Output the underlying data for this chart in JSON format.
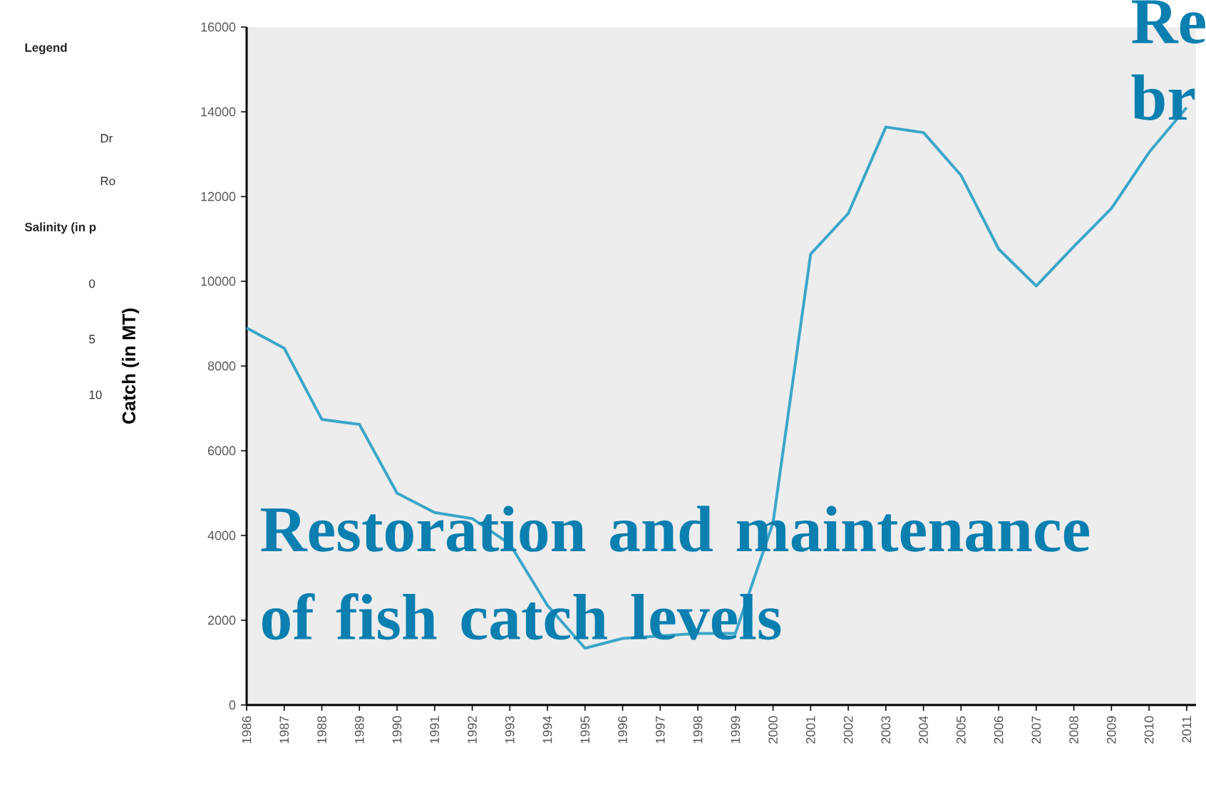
{
  "chart_data": {
    "type": "line",
    "ylabel": "Catch (in MT)",
    "categories": [
      "1986",
      "1987",
      "1988",
      "1989",
      "1990",
      "1991",
      "1992",
      "1993",
      "1994",
      "1995",
      "1996",
      "1997",
      "1998",
      "1999",
      "2000",
      "2001",
      "2002",
      "2003",
      "2004",
      "2005",
      "2006",
      "2007",
      "2008",
      "2009",
      "2010",
      "2011"
    ],
    "series": [
      {
        "color": "#3aa6c8",
        "values": [
          8900,
          8420,
          6740,
          6620,
          5000,
          4540,
          4400,
          3800,
          2350,
          1340,
          1570,
          1630,
          1690,
          1690,
          4300,
          10640,
          11600,
          13640,
          13510,
          12500,
          10760,
          9890,
          10820,
          11720,
          13040,
          14100
        ]
      }
    ],
    "ylim": [
      0,
      16000
    ],
    "yticks": [
      0,
      2000,
      4000,
      6000,
      8000,
      10000,
      12000,
      14000,
      16000
    ],
    "grid": false,
    "marker": "none",
    "line_style": "solid",
    "annotations": [
      "Restoration and maintenance of fish catch levels",
      "Re",
      "br",
      "Legend",
      "Dr",
      "Ro",
      "Salinity (in p",
      "0",
      "5",
      "10"
    ]
  }
}
